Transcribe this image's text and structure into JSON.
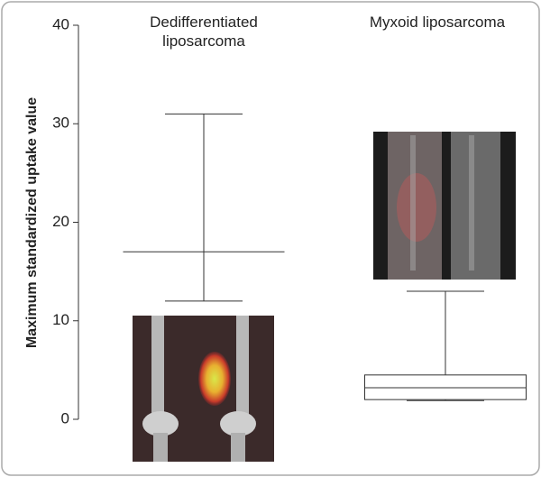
{
  "chart_data": {
    "type": "box",
    "ylabel": "Maximum standardized uptake value",
    "categories": [
      "Dedifferentiated liposarcoma",
      "Myxoid liposarcoma"
    ],
    "max": [
      31,
      13
    ],
    "q3": [
      17,
      4.5
    ],
    "median": [
      null,
      3.2
    ],
    "q1": [
      null,
      2.0
    ],
    "min": [
      12,
      1.9
    ],
    "ylim": [
      0,
      40
    ],
    "yticks": [
      0,
      10,
      20,
      30,
      40
    ],
    "color": "#333333"
  }
}
